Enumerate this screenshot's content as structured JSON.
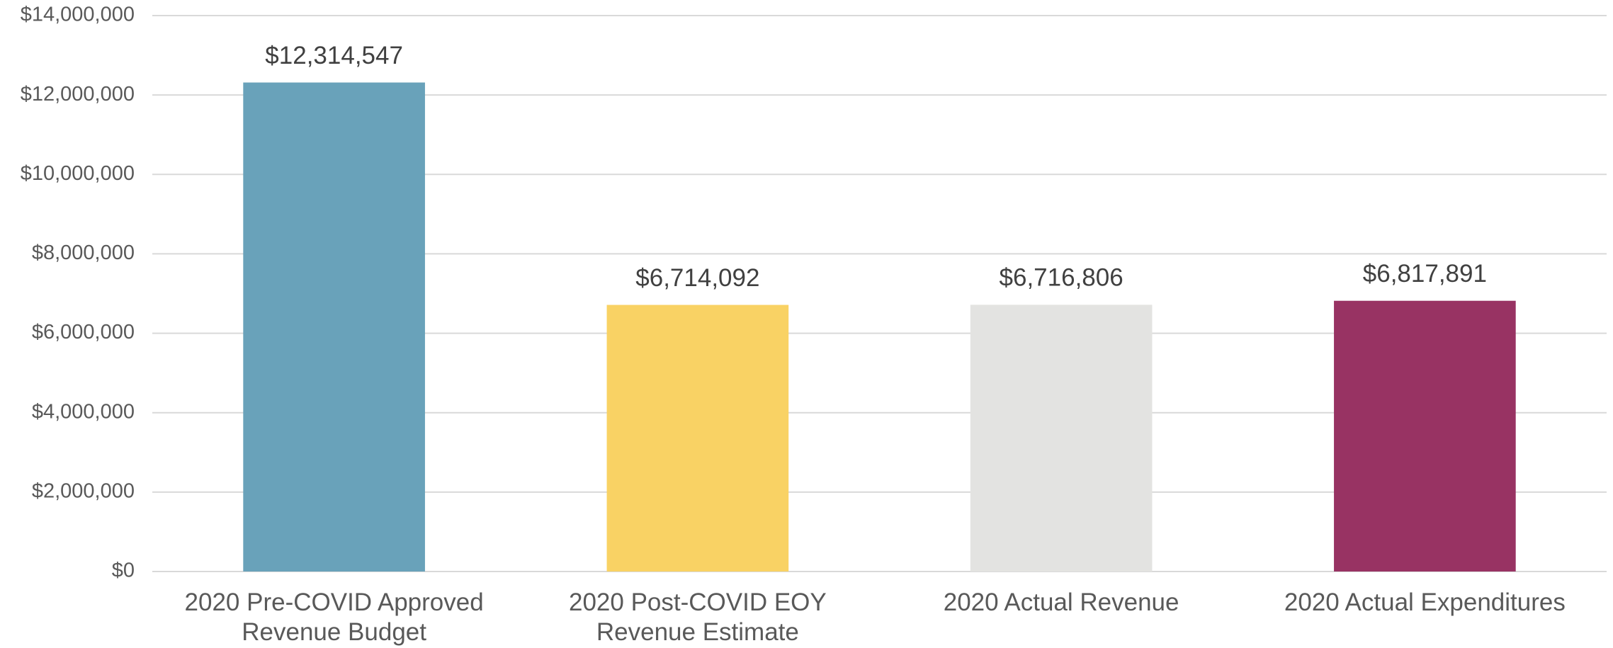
{
  "chart_data": {
    "type": "bar",
    "categories": [
      "2020 Pre-COVID Approved Revenue Budget",
      "2020 Post-COVID EOY Revenue Estimate",
      "2020 Actual Revenue",
      "2020 Actual Expenditures"
    ],
    "values": [
      12314547,
      6714092,
      6716806,
      6817891
    ],
    "value_labels": [
      "$12,314,547",
      "$6,714,092",
      "$6,716,806",
      "$6,817,891"
    ],
    "colors": [
      "#69a2ba",
      "#f9d264",
      "#e3e3e1",
      "#983363"
    ],
    "ylim": [
      0,
      14000000
    ],
    "yticks": [
      {
        "value": 0,
        "label": "$0"
      },
      {
        "value": 2000000,
        "label": "$2,000,000"
      },
      {
        "value": 4000000,
        "label": "$4,000,000"
      },
      {
        "value": 6000000,
        "label": "$6,000,000"
      },
      {
        "value": 8000000,
        "label": "$8,000,000"
      },
      {
        "value": 10000000,
        "label": "$10,000,000"
      },
      {
        "value": 12000000,
        "label": "$12,000,000"
      },
      {
        "value": 14000000,
        "label": "$14,000,000"
      }
    ],
    "grid": true
  }
}
